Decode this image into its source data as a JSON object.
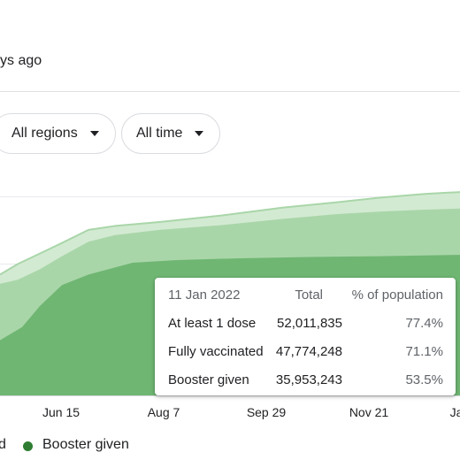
{
  "header": {
    "updated_text": "ys ago"
  },
  "filters": {
    "regions_label": "All regions",
    "time_label": "All time"
  },
  "colors": {
    "dose1": "#d3ead2",
    "full": "#a9d6a9",
    "booster": "#6fb672",
    "booster_dot": "#2e7d32"
  },
  "chart_data": {
    "type": "area",
    "x_ticks": [
      "Jun 15",
      "Aug 7",
      "Sep 29",
      "Nov 21",
      "Ja"
    ],
    "legend": [
      {
        "label": "d"
      },
      {
        "label": "Booster given"
      }
    ],
    "series": [
      {
        "name": "At least 1 dose",
        "points": [
          [
            0,
            46.0
          ],
          [
            20,
            50.0
          ],
          [
            45,
            54.0
          ],
          [
            70,
            58.0
          ],
          [
            100,
            63.0
          ],
          [
            130,
            64.5
          ],
          [
            180,
            66.0
          ],
          [
            250,
            68.5
          ],
          [
            320,
            71.5
          ],
          [
            380,
            73.5
          ],
          [
            430,
            75.3
          ],
          [
            480,
            76.7
          ],
          [
            520,
            77.4
          ]
        ]
      },
      {
        "name": "Fully vaccinated",
        "points": [
          [
            0,
            42.5
          ],
          [
            20,
            44.0
          ],
          [
            45,
            48.0
          ],
          [
            70,
            53.0
          ],
          [
            100,
            58.5
          ],
          [
            130,
            61.0
          ],
          [
            180,
            63.0
          ],
          [
            250,
            64.8
          ],
          [
            320,
            67.2
          ],
          [
            380,
            69.0
          ],
          [
            430,
            70.0
          ],
          [
            480,
            70.7
          ],
          [
            520,
            71.1
          ]
        ]
      },
      {
        "name": "Booster given",
        "points": [
          [
            0,
            21.0
          ],
          [
            25,
            26.0
          ],
          [
            45,
            34.0
          ],
          [
            70,
            42.0
          ],
          [
            100,
            46.0
          ],
          [
            150,
            50.5
          ],
          [
            200,
            51.5
          ],
          [
            270,
            52.2
          ],
          [
            350,
            52.7
          ],
          [
            430,
            53.0
          ],
          [
            520,
            53.5
          ]
        ]
      }
    ],
    "tooltip": {
      "date": "11 Jan 2022",
      "col_total": "Total",
      "col_pct": "% of population",
      "rows": [
        {
          "label": "At least 1 dose",
          "total": "52,011,835",
          "pct": "77.4%"
        },
        {
          "label": "Fully vaccinated",
          "total": "47,774,248",
          "pct": "71.1%"
        },
        {
          "label": "Booster given",
          "total": "35,953,243",
          "pct": "53.5%"
        }
      ]
    }
  }
}
